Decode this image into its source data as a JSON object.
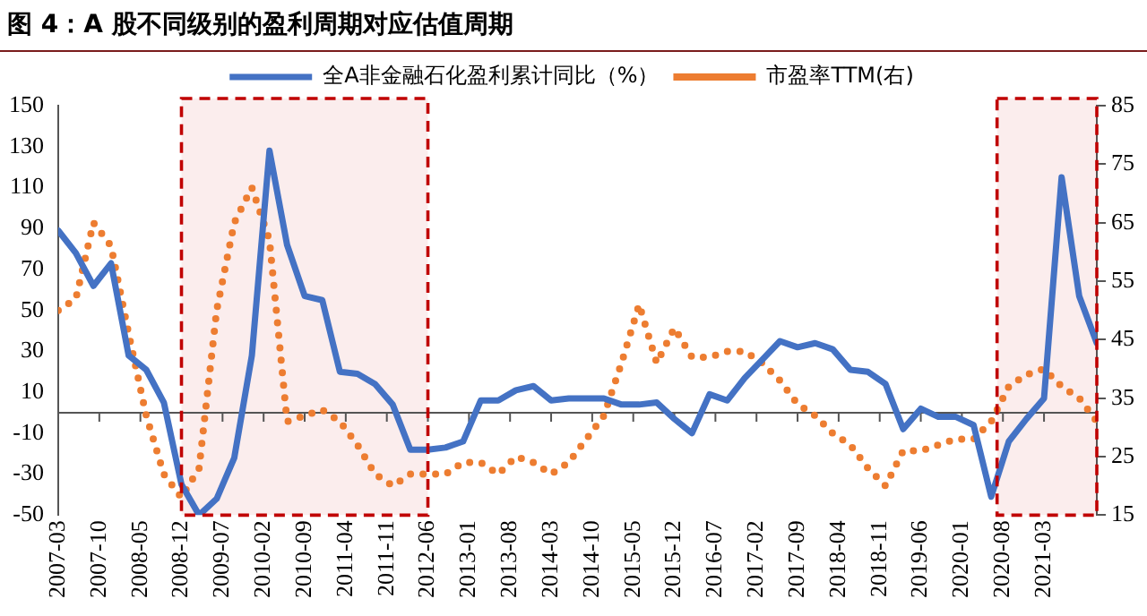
{
  "chart_data": {
    "type": "line",
    "title": "图 4：A 股不同级别的盈利周期对应估值周期",
    "x": [
      "2007-03",
      "2007-06",
      "2007-09",
      "2007-12",
      "2008-03",
      "2008-06",
      "2008-09",
      "2008-12",
      "2009-03",
      "2009-06",
      "2009-09",
      "2009-12",
      "2010-03",
      "2010-06",
      "2010-09",
      "2010-12",
      "2011-03",
      "2011-06",
      "2011-09",
      "2011-12",
      "2012-03",
      "2012-06",
      "2012-09",
      "2012-12",
      "2013-03",
      "2013-06",
      "2013-09",
      "2013-12",
      "2014-03",
      "2014-06",
      "2014-09",
      "2014-12",
      "2015-03",
      "2015-06",
      "2015-09",
      "2015-12",
      "2016-03",
      "2016-06",
      "2016-09",
      "2016-12",
      "2017-03",
      "2017-06",
      "2017-09",
      "2017-12",
      "2018-03",
      "2018-06",
      "2018-09",
      "2018-12",
      "2019-03",
      "2019-06",
      "2019-09",
      "2019-12",
      "2020-03",
      "2020-06",
      "2020-09",
      "2020-12",
      "2021-03",
      "2021-06",
      "2021-09",
      "2021-12"
    ],
    "series": [
      {
        "name": "全A非金融石化盈利累计同比（%）",
        "color": "#4472c4",
        "line_style": "solid",
        "values": [
          89,
          78,
          62,
          73,
          28,
          21,
          5,
          -35,
          -50,
          -42,
          -22,
          28,
          128,
          82,
          57,
          55,
          20,
          19,
          14,
          4,
          -18,
          -18,
          -17,
          -14,
          6,
          6,
          11,
          13,
          6,
          7,
          7,
          7,
          4,
          4,
          5,
          -3,
          -10,
          9,
          6,
          17,
          26,
          35,
          32,
          34,
          31,
          21,
          20,
          14,
          -8,
          2,
          -2,
          -2,
          -6,
          -41,
          -14,
          -3,
          7,
          115,
          57,
          34
        ]
      },
      {
        "name": "市盈率TTM(右)",
        "color": "#ed7d31",
        "line_style": "dotted",
        "axis": "y2",
        "values": [
          50,
          52,
          65,
          61,
          46,
          32,
          22,
          18,
          23,
          50,
          65,
          71,
          62,
          31,
          32,
          33,
          31,
          27,
          22,
          20,
          22,
          22,
          22,
          24,
          24,
          22,
          25,
          24,
          22,
          24,
          28,
          32,
          41,
          51,
          41,
          47,
          42,
          42,
          43,
          43,
          41,
          38,
          34,
          32,
          29,
          27,
          23,
          20,
          26,
          26,
          27,
          28,
          28,
          31,
          37,
          39,
          40,
          37,
          35,
          31
        ]
      }
    ],
    "xlim": [
      "2007-03",
      "2021-12"
    ],
    "xticks": [
      "2007-03",
      "2007-10",
      "2008-05",
      "2008-12",
      "2009-07",
      "2010-02",
      "2010-09",
      "2011-04",
      "2011-11",
      "2012-06",
      "2013-01",
      "2013-08",
      "2014-03",
      "2014-10",
      "2015-05",
      "2015-12",
      "2016-07",
      "2017-02",
      "2017-09",
      "2018-04",
      "2018-11",
      "2019-06",
      "2020-01",
      "2020-08",
      "2021-03"
    ],
    "ylim": [
      -50,
      150
    ],
    "yticks": [
      -50,
      -30,
      -10,
      10,
      30,
      50,
      70,
      90,
      110,
      130,
      150
    ],
    "y2lim": [
      15,
      85
    ],
    "y2ticks": [
      15,
      25,
      35,
      45,
      55,
      65,
      75,
      85
    ],
    "bands": [
      {
        "axis": "x",
        "from": "2008-12",
        "to": "2012-06",
        "color": "#c00000"
      },
      {
        "axis": "x",
        "from": "2020-07",
        "to": "2021-12",
        "color": "#c00000"
      }
    ],
    "legend": "top",
    "grid": false,
    "marker": "none"
  }
}
